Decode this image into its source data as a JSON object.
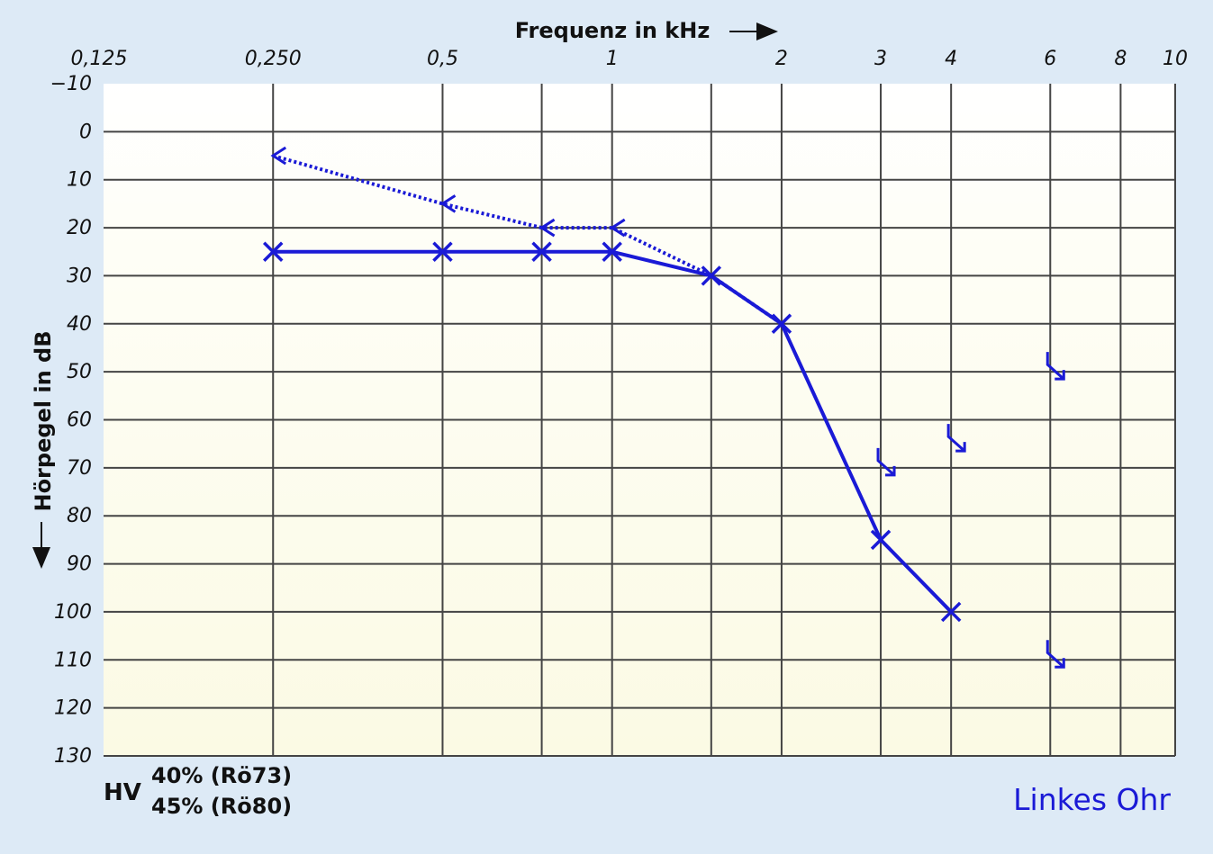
{
  "chart_data": {
    "type": "line",
    "title": "",
    "xlabel": "Frequenz in kHz",
    "ylabel": "Hörpegel in dB",
    "x_scale": "log",
    "x_ticks": [
      "0,125",
      "0,250",
      "0,5",
      "1",
      "2",
      "3",
      "4",
      "6",
      "8",
      "10"
    ],
    "x_tick_values": [
      0.125,
      0.25,
      0.5,
      1,
      2,
      3,
      4,
      6,
      8,
      10
    ],
    "x_grid_values": [
      0.25,
      0.5,
      0.75,
      1,
      1.5,
      2,
      3,
      4,
      6,
      8,
      10
    ],
    "y_ticks": [
      "−10",
      "0",
      "10",
      "20",
      "30",
      "40",
      "50",
      "60",
      "70",
      "80",
      "90",
      "100",
      "110",
      "120",
      "130"
    ],
    "y_tick_values": [
      -10,
      0,
      10,
      20,
      30,
      40,
      50,
      60,
      70,
      80,
      90,
      100,
      110,
      120,
      130
    ],
    "ylim": [
      -10,
      130
    ],
    "y_inverted": true,
    "xlim": [
      0.125,
      10
    ],
    "grid": true,
    "series": [
      {
        "marker": "x",
        "line": "solid",
        "color": "#1a1ad6",
        "x": [
          0.25,
          0.5,
          0.75,
          1,
          1.5,
          2,
          3,
          4
        ],
        "y": [
          25,
          25,
          25,
          25,
          30,
          40,
          85,
          100
        ]
      },
      {
        "marker": "left-arrow",
        "line": "dotted",
        "color": "#1a1ad6",
        "x": [
          0.25,
          0.5,
          0.75,
          1,
          1.5,
          2
        ],
        "y": [
          5,
          15,
          20,
          20,
          30,
          40
        ]
      },
      {
        "marker": "down-right-arrow",
        "line": "none",
        "color": "#1a1ad6",
        "x": [
          3,
          4,
          6,
          6
        ],
        "y": [
          70,
          65,
          50,
          110
        ]
      }
    ],
    "annotations": {
      "hv_label": "HV",
      "hv_line1": "40% (Rö73)",
      "hv_line2": "45% (Rö80)",
      "ear": "Linkes Ohr"
    }
  },
  "colors": {
    "background": "#ddeaf6",
    "plot_top": "#ffffff",
    "plot_bottom": "#fcfbe8",
    "series": "#1a1ad6",
    "grid": "#444444"
  }
}
